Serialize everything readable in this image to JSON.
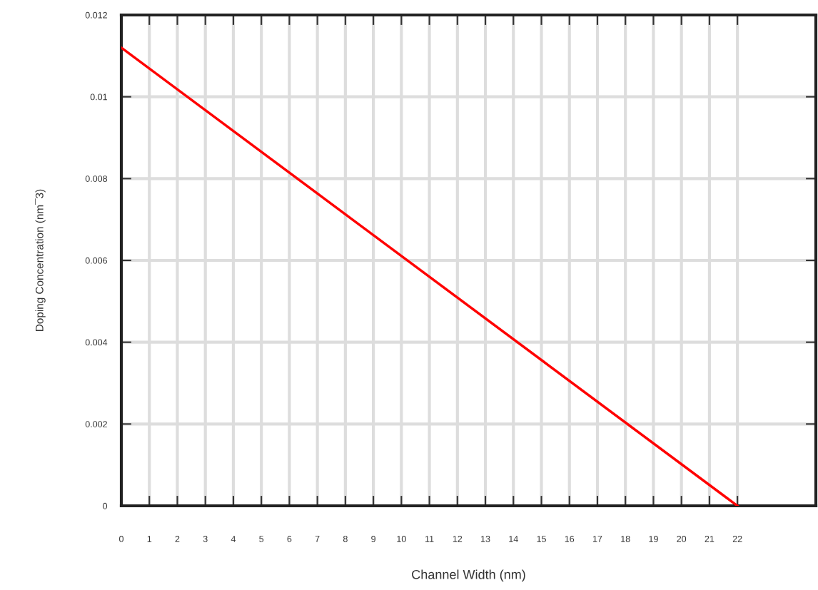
{
  "chart_data": {
    "type": "line",
    "xlabel": "Channel Width (nm)",
    "ylabel": "Doping Concentration (nm¯3)",
    "x": [
      0,
      22
    ],
    "series": [
      {
        "color": "#ff0000",
        "values": [
          0.0112,
          0
        ]
      }
    ],
    "xlim": [
      0,
      24.8
    ],
    "xticks": [
      0,
      1,
      2,
      3,
      4,
      5,
      6,
      7,
      8,
      9,
      10,
      11,
      12,
      13,
      14,
      15,
      16,
      17,
      18,
      19,
      20,
      21,
      22
    ],
    "ylim": [
      0,
      0.012
    ],
    "yticks": [
      {
        "value": 0,
        "label": "0"
      },
      {
        "value": 0.002,
        "label": "0.002"
      },
      {
        "value": 0.004,
        "label": "0.004"
      },
      {
        "value": 0.006,
        "label": "0.006"
      },
      {
        "value": 0.008,
        "label": "0.008"
      },
      {
        "value": 0.01,
        "label": "0.01"
      },
      {
        "value": 0.012,
        "label": "0.012"
      }
    ],
    "grid": true,
    "legend": false,
    "marker": "none",
    "line_style": "solid"
  }
}
